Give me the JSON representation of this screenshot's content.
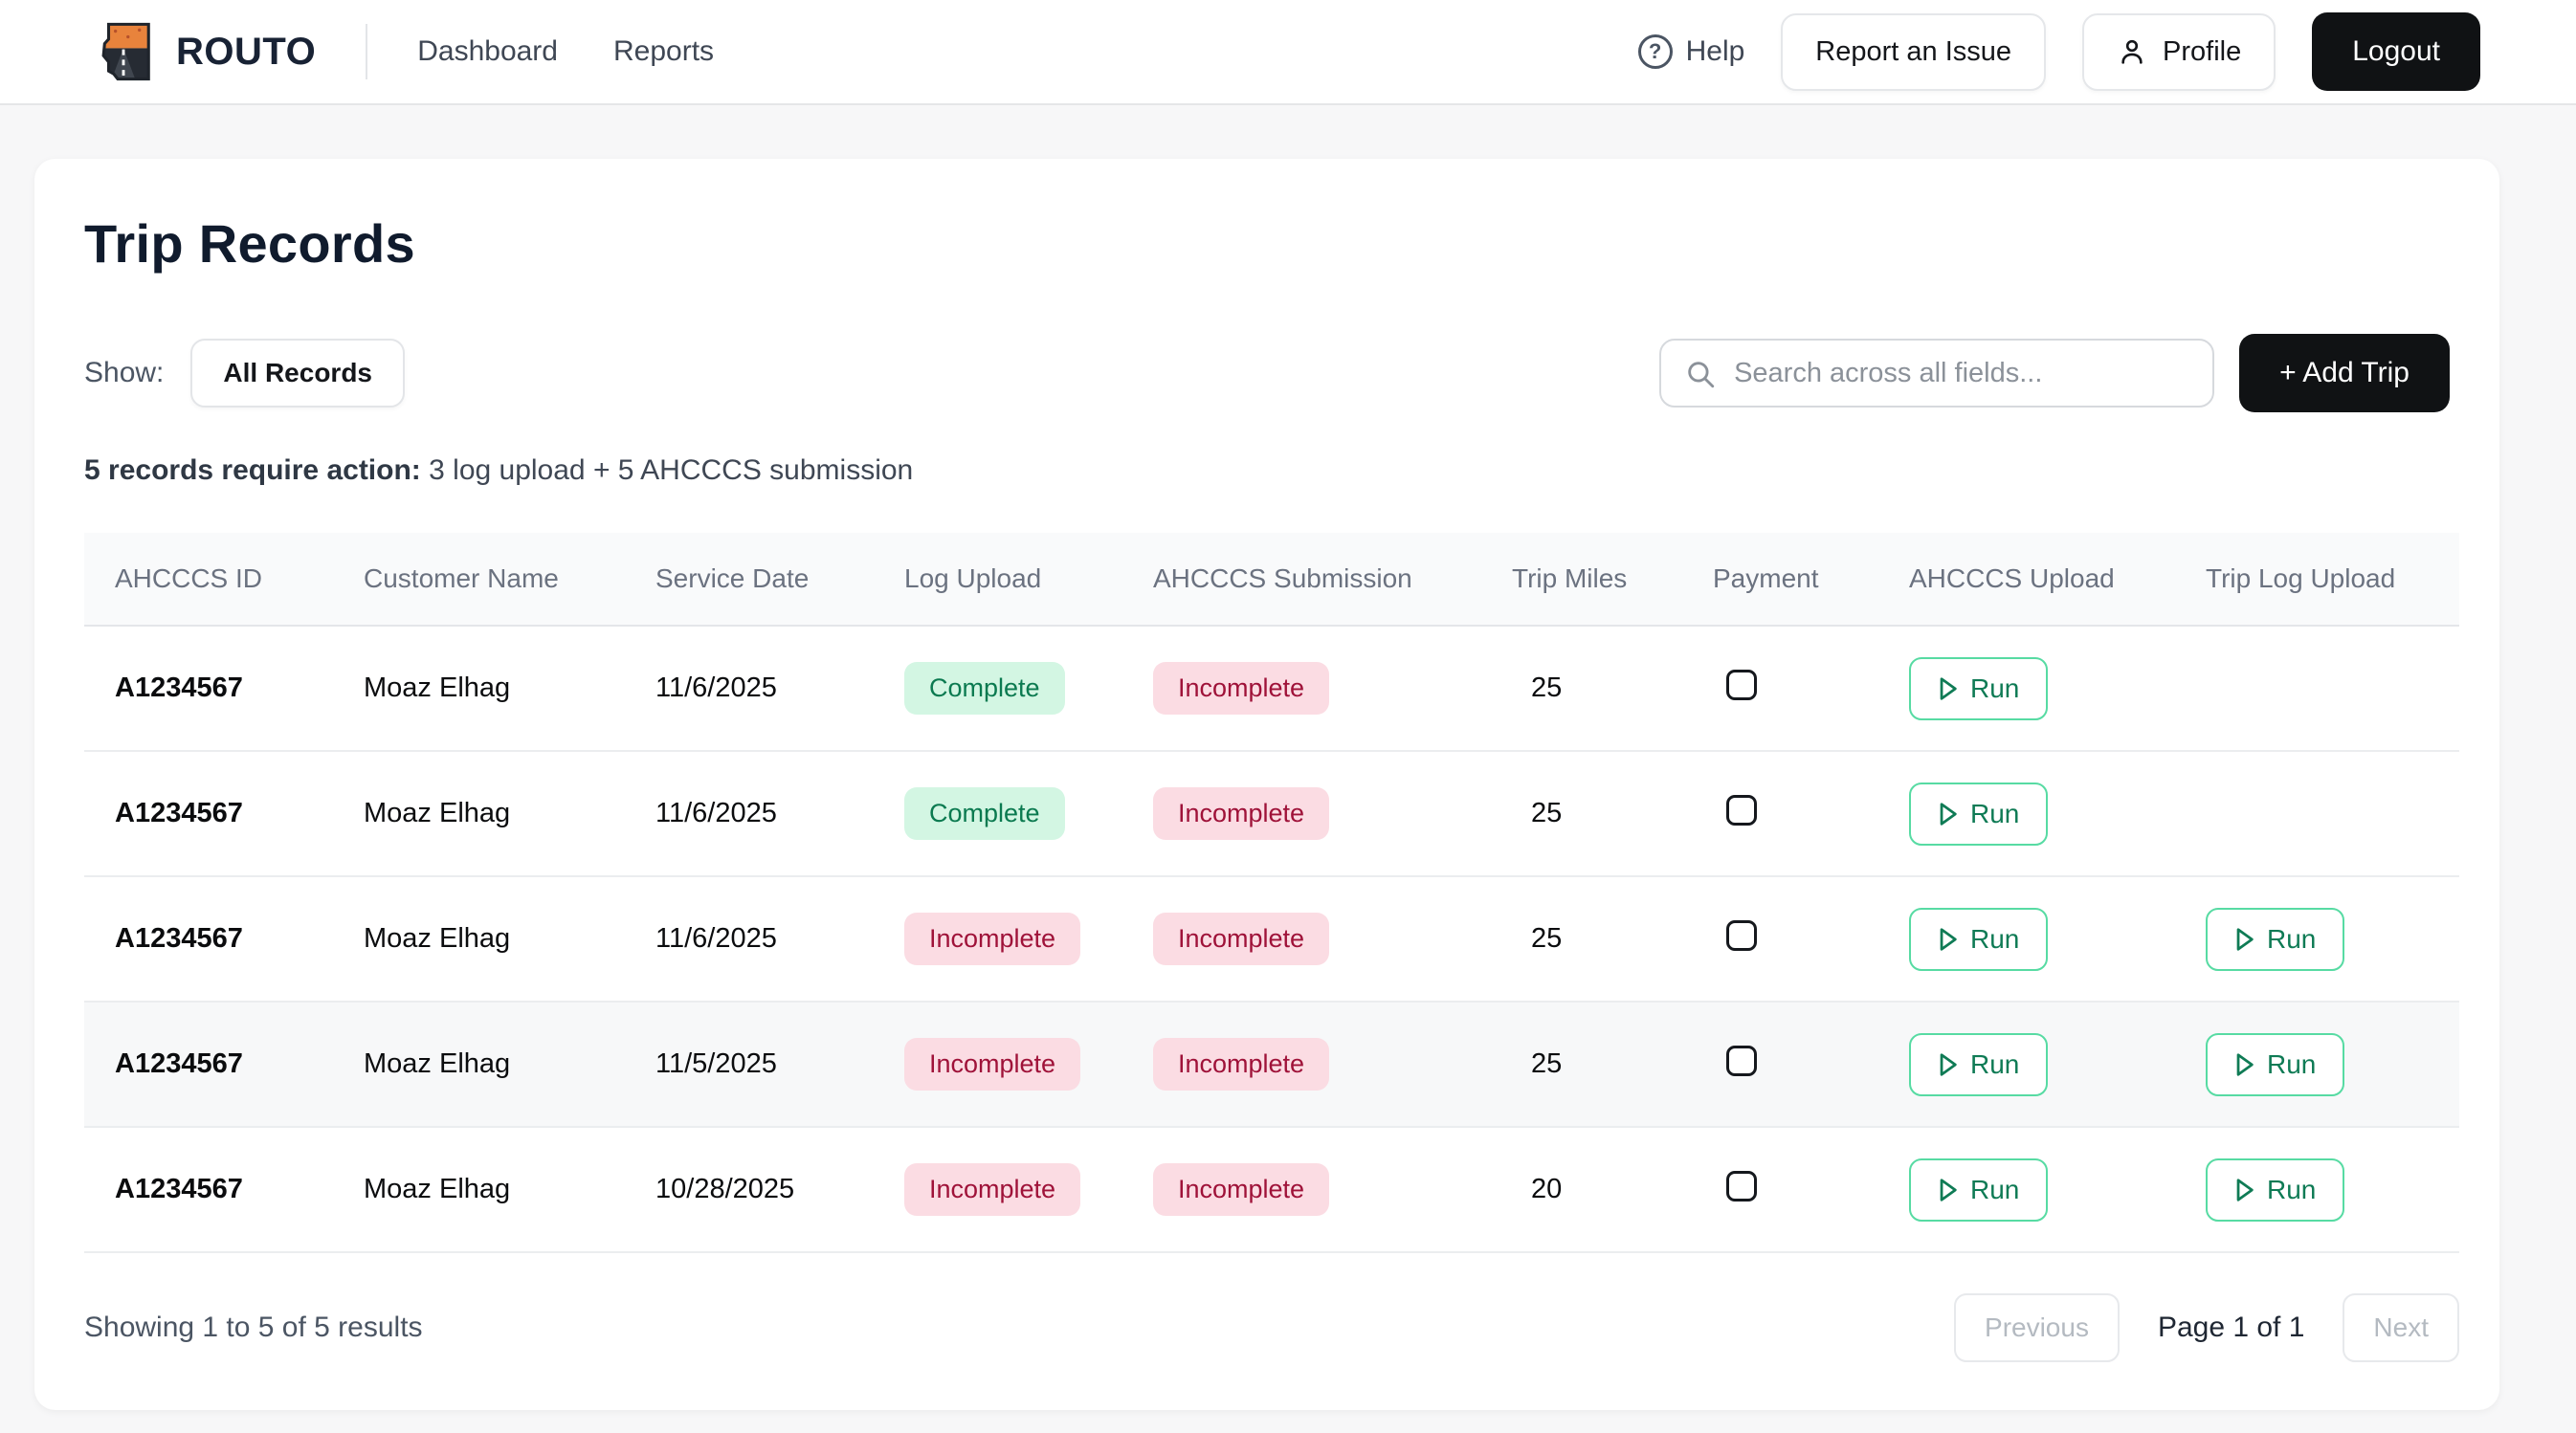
{
  "brand": {
    "name": "ROUTO"
  },
  "nav": {
    "items": [
      {
        "label": "Dashboard"
      },
      {
        "label": "Reports"
      }
    ],
    "help_label": "Help",
    "report_issue_label": "Report an Issue",
    "profile_label": "Profile",
    "logout_label": "Logout"
  },
  "page": {
    "title": "Trip Records",
    "show_label": "Show:",
    "filter_value": "All Records",
    "search_placeholder": "Search across all fields...",
    "add_trip_label": "+ Add Trip",
    "action_note_bold": "5 records require action:",
    "action_note_rest": " 3 log upload + 5 AHCCCS submission"
  },
  "table": {
    "columns": [
      "AHCCCS ID",
      "Customer Name",
      "Service Date",
      "Log Upload",
      "AHCCCS Submission",
      "Trip Miles",
      "Payment",
      "AHCCCS Upload",
      "Trip Log Upload"
    ],
    "run_label": "Run",
    "rows": [
      {
        "ahcccs_id": "A1234567",
        "customer_name": "Moaz Elhag",
        "service_date": "11/6/2025",
        "log_upload": "Complete",
        "ahcccs_submission": "Incomplete",
        "trip_miles": "25",
        "payment_checked": false,
        "ahcccs_upload_run": true,
        "trip_log_upload_run": false,
        "highlighted": false
      },
      {
        "ahcccs_id": "A1234567",
        "customer_name": "Moaz Elhag",
        "service_date": "11/6/2025",
        "log_upload": "Complete",
        "ahcccs_submission": "Incomplete",
        "trip_miles": "25",
        "payment_checked": false,
        "ahcccs_upload_run": true,
        "trip_log_upload_run": false,
        "highlighted": false
      },
      {
        "ahcccs_id": "A1234567",
        "customer_name": "Moaz Elhag",
        "service_date": "11/6/2025",
        "log_upload": "Incomplete",
        "ahcccs_submission": "Incomplete",
        "trip_miles": "25",
        "payment_checked": false,
        "ahcccs_upload_run": true,
        "trip_log_upload_run": true,
        "highlighted": false
      },
      {
        "ahcccs_id": "A1234567",
        "customer_name": "Moaz Elhag",
        "service_date": "11/5/2025",
        "log_upload": "Incomplete",
        "ahcccs_submission": "Incomplete",
        "trip_miles": "25",
        "payment_checked": false,
        "ahcccs_upload_run": true,
        "trip_log_upload_run": true,
        "highlighted": true
      },
      {
        "ahcccs_id": "A1234567",
        "customer_name": "Moaz Elhag",
        "service_date": "10/28/2025",
        "log_upload": "Incomplete",
        "ahcccs_submission": "Incomplete",
        "trip_miles": "20",
        "payment_checked": false,
        "ahcccs_upload_run": true,
        "trip_log_upload_run": true,
        "highlighted": false
      }
    ]
  },
  "footer": {
    "summary": "Showing 1 to 5 of 5 results",
    "previous_label": "Previous",
    "page_indicator": "Page 1 of 1",
    "next_label": "Next"
  },
  "colors": {
    "accent_dark": "#101214",
    "badge_complete_bg": "#d3f6e3",
    "badge_complete_text": "#0b7a50",
    "badge_incomplete_bg": "#fbdce3",
    "badge_incomplete_text": "#9f1239",
    "run_border": "#57dba3",
    "run_text": "#0f7b55",
    "brand_text": "#182234",
    "logo_orange": "#e8833c",
    "logo_dark": "#262b33"
  }
}
